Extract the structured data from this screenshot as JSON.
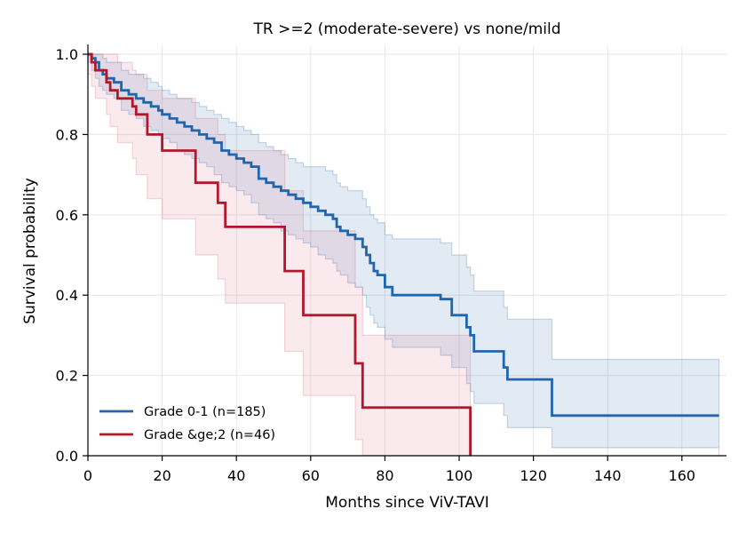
{
  "chart_data": {
    "type": "line",
    "title": "TR >=2 (moderate-severe) vs none/mild",
    "xlabel": "Months since ViV-TAVI",
    "ylabel": "Survival probability",
    "xlim": [
      0,
      172
    ],
    "ylim": [
      0,
      1.02
    ],
    "xticks": [
      0,
      20,
      40,
      60,
      80,
      100,
      120,
      140,
      160
    ],
    "yticks": [
      0.0,
      0.2,
      0.4,
      0.6,
      0.8,
      1.0
    ],
    "xtick_labels": [
      "0",
      "20",
      "40",
      "60",
      "80",
      "100",
      "120",
      "140",
      "160"
    ],
    "ytick_labels": [
      "0.0",
      "0.2",
      "0.4",
      "0.6",
      "0.8",
      "1.0"
    ],
    "grid": true,
    "legend_position": "lower-left",
    "step": "post",
    "series": [
      {
        "name": "Grade 0-1 (n=185)",
        "color": "#2166ac",
        "band_color": "#2166ac",
        "x": [
          0,
          1,
          2,
          3,
          4,
          5,
          7,
          9,
          11,
          13,
          15,
          17,
          19,
          20,
          22,
          24,
          26,
          28,
          30,
          32,
          34,
          36,
          38,
          40,
          42,
          44,
          46,
          48,
          50,
          52,
          54,
          56,
          58,
          60,
          62,
          64,
          66,
          67,
          68,
          70,
          72,
          74,
          75,
          76,
          77,
          78,
          80,
          82,
          95,
          98,
          102,
          103,
          104,
          112,
          113,
          125,
          170
        ],
        "y": [
          1.0,
          0.99,
          0.98,
          0.96,
          0.95,
          0.94,
          0.93,
          0.91,
          0.9,
          0.89,
          0.88,
          0.87,
          0.86,
          0.85,
          0.84,
          0.83,
          0.82,
          0.81,
          0.8,
          0.79,
          0.78,
          0.76,
          0.75,
          0.74,
          0.73,
          0.72,
          0.69,
          0.68,
          0.67,
          0.66,
          0.65,
          0.64,
          0.63,
          0.62,
          0.61,
          0.6,
          0.59,
          0.57,
          0.56,
          0.55,
          0.54,
          0.52,
          0.5,
          0.48,
          0.46,
          0.45,
          0.42,
          0.4,
          0.39,
          0.35,
          0.32,
          0.3,
          0.26,
          0.22,
          0.19,
          0.1,
          0.1
        ],
        "ci_lower": [
          0.98,
          0.96,
          0.94,
          0.92,
          0.91,
          0.9,
          0.89,
          0.86,
          0.85,
          0.84,
          0.82,
          0.81,
          0.8,
          0.79,
          0.78,
          0.76,
          0.75,
          0.74,
          0.73,
          0.72,
          0.7,
          0.68,
          0.67,
          0.66,
          0.65,
          0.63,
          0.6,
          0.59,
          0.58,
          0.56,
          0.55,
          0.54,
          0.53,
          0.52,
          0.5,
          0.49,
          0.48,
          0.46,
          0.45,
          0.43,
          0.42,
          0.4,
          0.37,
          0.35,
          0.33,
          0.32,
          0.29,
          0.27,
          0.25,
          0.22,
          0.18,
          0.16,
          0.13,
          0.1,
          0.07,
          0.02,
          0.0
        ],
        "ci_upper": [
          1.0,
          1.0,
          1.0,
          1.0,
          0.99,
          0.98,
          0.98,
          0.96,
          0.95,
          0.95,
          0.94,
          0.93,
          0.92,
          0.91,
          0.9,
          0.89,
          0.89,
          0.88,
          0.87,
          0.86,
          0.85,
          0.84,
          0.83,
          0.82,
          0.81,
          0.8,
          0.78,
          0.77,
          0.76,
          0.75,
          0.74,
          0.73,
          0.72,
          0.72,
          0.72,
          0.71,
          0.7,
          0.68,
          0.67,
          0.66,
          0.66,
          0.64,
          0.62,
          0.6,
          0.59,
          0.58,
          0.55,
          0.54,
          0.53,
          0.5,
          0.47,
          0.45,
          0.41,
          0.37,
          0.34,
          0.24,
          0.24
        ]
      },
      {
        "name": "Grade &ge;2 (n=46)",
        "color": "#b2182b",
        "band_color": "#d6607a",
        "x": [
          0,
          1,
          2,
          5,
          6,
          8,
          12,
          13,
          16,
          20,
          29,
          35,
          37,
          53,
          58,
          72,
          74,
          100,
          103
        ],
        "y": [
          1.0,
          0.98,
          0.96,
          0.93,
          0.91,
          0.89,
          0.87,
          0.85,
          0.8,
          0.76,
          0.68,
          0.63,
          0.57,
          0.46,
          0.35,
          0.23,
          0.12,
          0.12,
          0.0
        ],
        "ci_lower": [
          0.95,
          0.92,
          0.89,
          0.85,
          0.82,
          0.78,
          0.74,
          0.7,
          0.64,
          0.59,
          0.5,
          0.44,
          0.38,
          0.26,
          0.15,
          0.04,
          0.0,
          0.0,
          0.0
        ],
        "ci_upper": [
          1.0,
          1.0,
          1.0,
          1.0,
          1.0,
          0.98,
          0.96,
          0.95,
          0.91,
          0.89,
          0.84,
          0.8,
          0.76,
          0.66,
          0.56,
          0.42,
          0.3,
          0.3,
          0.3
        ]
      }
    ]
  }
}
